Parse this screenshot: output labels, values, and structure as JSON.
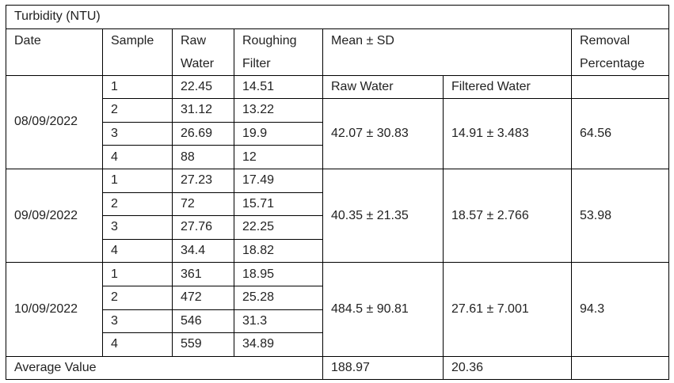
{
  "table": {
    "title": "Turbidity (NTU)",
    "header": [
      "Date",
      "Sample",
      "Raw Water",
      "Roughing Filter",
      "Mean ± SD",
      "Removal Percentage"
    ],
    "subheader": [
      "Raw Water",
      "Filtered Water"
    ],
    "groups": [
      {
        "date": "08/09/2022",
        "rows": [
          [
            1,
            22.45,
            14.51
          ],
          [
            2,
            31.12,
            13.22
          ],
          [
            3,
            26.69,
            19.9
          ],
          [
            4,
            88,
            12
          ]
        ],
        "raw_mean": "42.07 ± 30.83",
        "filtered_mean": "14.91 ± 3.483",
        "removal": 64.56
      },
      {
        "date": "09/09/2022",
        "rows": [
          [
            1,
            27.23,
            17.49
          ],
          [
            2,
            72,
            15.71
          ],
          [
            3,
            27.76,
            22.25
          ],
          [
            4,
            34.4,
            18.82
          ]
        ],
        "raw_mean": "40.35 ± 21.35",
        "filtered_mean": "18.57 ± 2.766",
        "removal": 53.98
      },
      {
        "date": "10/09/2022",
        "rows": [
          [
            1,
            361,
            18.95
          ],
          [
            2,
            472,
            25.28
          ],
          [
            3,
            546,
            31.3
          ],
          [
            4,
            559,
            34.89
          ]
        ],
        "raw_mean": "484.5 ± 90.81",
        "filtered_mean": "27.61 ± 7.001",
        "removal": 94.3
      }
    ],
    "footer": {
      "label": "Average Value",
      "raw": 188.97,
      "filtered": 20.36
    }
  }
}
